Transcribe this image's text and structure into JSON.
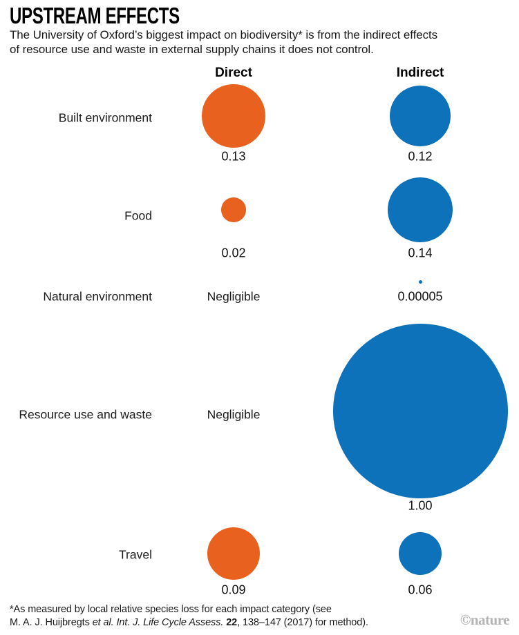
{
  "header": {
    "title": "UPSTREAM EFFECTS",
    "subtitle_lines": [
      "The University of Oxford’s biggest impact on biodiversity* is from the indirect effects",
      "of resource use and waste in external supply chains it does not control."
    ]
  },
  "chart_data": {
    "type": "bubble",
    "columns": [
      "Direct",
      "Indirect"
    ],
    "rows": [
      {
        "category": "Built environment",
        "direct": {
          "value": 0.13,
          "label": "0.13"
        },
        "indirect": {
          "value": 0.12,
          "label": "0.12"
        }
      },
      {
        "category": "Food",
        "direct": {
          "value": 0.02,
          "label": "0.02"
        },
        "indirect": {
          "value": 0.14,
          "label": "0.14"
        }
      },
      {
        "category": "Natural environment",
        "direct": {
          "value": null,
          "label": "Negligible"
        },
        "indirect": {
          "value": 5e-05,
          "label": "0.00005"
        }
      },
      {
        "category": "Resource use and waste",
        "direct": {
          "value": null,
          "label": "Negligible"
        },
        "indirect": {
          "value": 1.0,
          "label": "1.00"
        }
      },
      {
        "category": "Travel",
        "direct": {
          "value": 0.09,
          "label": "0.09"
        },
        "indirect": {
          "value": 0.06,
          "label": "0.06"
        }
      }
    ],
    "colors": {
      "direct": "#E8611E",
      "indirect": "#0D72B9"
    },
    "layout": {
      "diameter_for_value_1": 253,
      "min_diameter": 5,
      "legend": "none",
      "grid": false
    }
  },
  "footnote": {
    "lines": [
      [
        {
          "t": "*As measured by local relative species loss for each impact category (see"
        }
      ],
      [
        {
          "t": "M. A. J. Huijbregts "
        },
        {
          "t": "et al. Int. J. Life Cycle Assess.",
          "i": true
        },
        {
          "t": " "
        },
        {
          "t": "22",
          "b": true
        },
        {
          "t": ", 138–147 (2017) for method)."
        }
      ]
    ]
  },
  "credit": "©nature"
}
